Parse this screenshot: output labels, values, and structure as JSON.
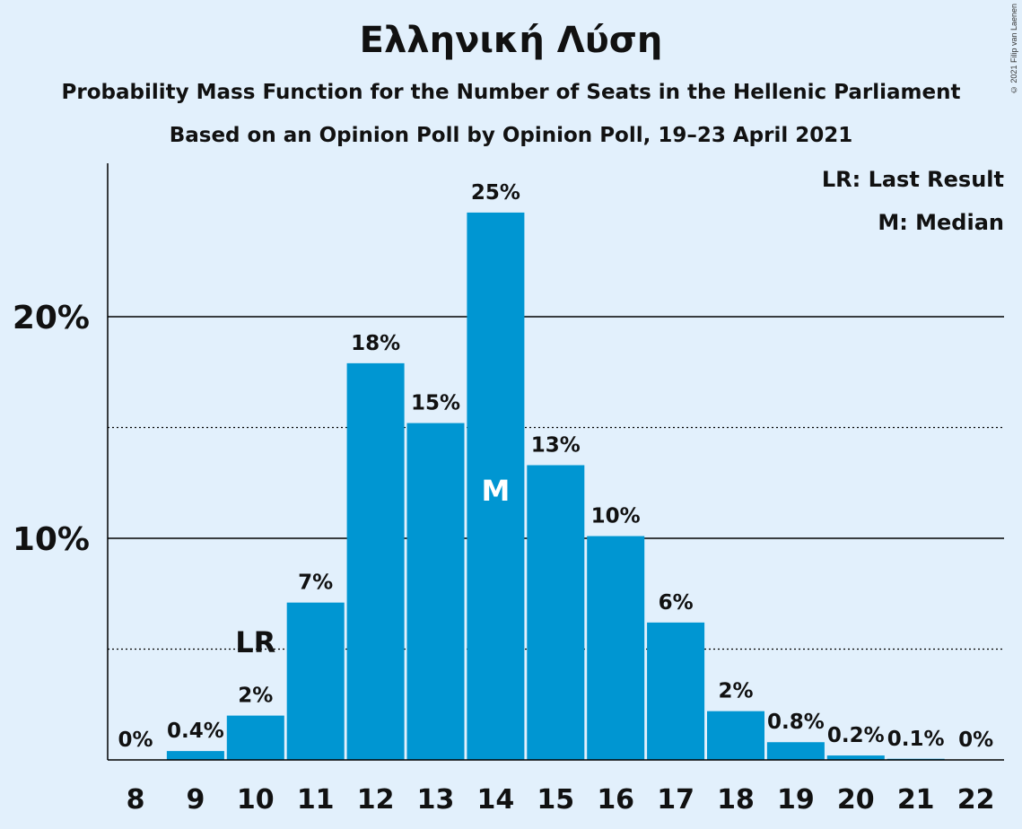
{
  "title": "Ελληνική Λύση",
  "subtitle1": "Probability Mass Function for the Number of Seats in the Hellenic Parliament",
  "subtitle2": "Based on an Opinion Poll by Opinion Poll, 19–23 April 2021",
  "copyright": "© 2021 Filip van Laenen",
  "legend": {
    "lr": "LR: Last Result",
    "m": "M: Median"
  },
  "colors": {
    "bar": "#0096d2",
    "background": "#e2f0fc"
  },
  "chart_data": {
    "type": "bar",
    "categories": [
      "8",
      "9",
      "10",
      "11",
      "12",
      "13",
      "14",
      "15",
      "16",
      "17",
      "18",
      "19",
      "20",
      "21",
      "22"
    ],
    "values": [
      0,
      0.4,
      2,
      7.1,
      17.9,
      15.2,
      24.7,
      13.3,
      10.1,
      6.2,
      2.2,
      0.8,
      0.2,
      0.05,
      0
    ],
    "data_labels": [
      "0%",
      "0.4%",
      "2%",
      "7%",
      "18%",
      "15%",
      "25%",
      "13%",
      "10%",
      "6%",
      "2%",
      "0.8%",
      "0.2%",
      "0.1%",
      "0%"
    ],
    "y_ticks": [
      {
        "value": 10,
        "label": "10%"
      },
      {
        "value": 20,
        "label": "20%"
      }
    ],
    "minor_gridlines": [
      5,
      15
    ],
    "ylim": [
      0,
      27
    ],
    "last_result": {
      "category": "10",
      "label": "LR"
    },
    "median": {
      "category": "14",
      "label": "M"
    }
  }
}
